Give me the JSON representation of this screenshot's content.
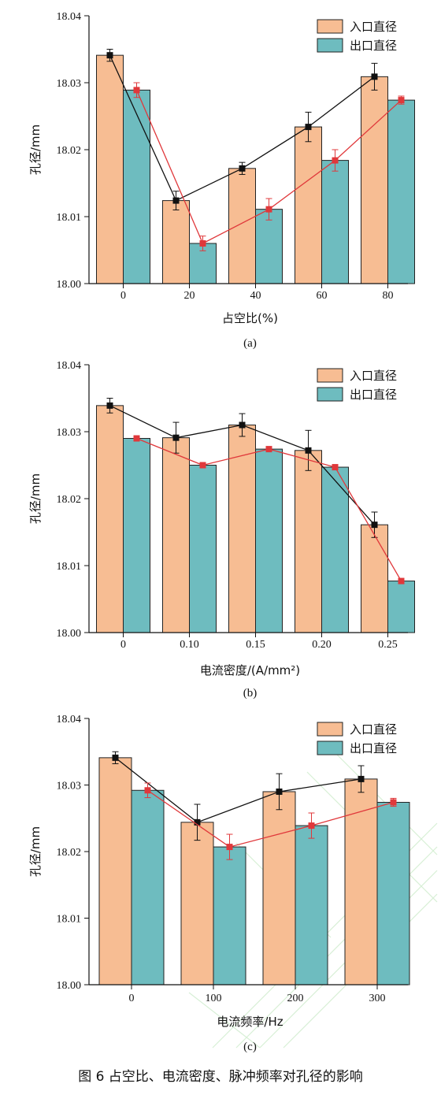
{
  "figure_caption": "图 6    占空比、电流密度、脉冲频率对孔径的影响",
  "colors": {
    "inlet_bar": "#f7bd93",
    "outlet_bar": "#6ebcbf",
    "inlet_line": "#111111",
    "outlet_line": "#e0383b",
    "watermark": "#d7efd6"
  },
  "chart_data": [
    {
      "type": "bar",
      "panel_label": "(a)",
      "xlabel": "占空比(%)",
      "ylabel": "孔径/mm",
      "ylim": [
        18.0,
        18.04
      ],
      "yticks": [
        "18.00",
        "18.01",
        "18.02",
        "18.03",
        "18.04"
      ],
      "categories": [
        "0",
        "20",
        "40",
        "60",
        "80"
      ],
      "legend_position": "top-right",
      "series": [
        {
          "name": "入口直径",
          "values": [
            18.0341,
            18.0124,
            18.0172,
            18.0234,
            18.0309
          ],
          "errors": [
            0.0009,
            0.0014,
            0.0009,
            0.0022,
            0.002
          ]
        },
        {
          "name": "出口直径",
          "values": [
            18.0289,
            18.006,
            18.0111,
            18.0184,
            18.0274
          ],
          "errors": [
            0.0011,
            0.0011,
            0.0016,
            0.0016,
            0.0006
          ]
        }
      ]
    },
    {
      "type": "bar",
      "panel_label": "(b)",
      "xlabel": "电流密度/(A/mm²)",
      "ylabel": "孔径/mm",
      "ylim": [
        18.0,
        18.04
      ],
      "yticks": [
        "18.00",
        "18.01",
        "18.02",
        "18.03",
        "18.04"
      ],
      "categories": [
        "0",
        "0.10",
        "0.15",
        "0.20",
        "0.25"
      ],
      "legend_position": "top-right",
      "series": [
        {
          "name": "入口直径",
          "values": [
            18.0339,
            18.0291,
            18.031,
            18.0272,
            18.0161
          ],
          "errors": [
            0.0011,
            0.0023,
            0.0017,
            0.003,
            0.0019
          ]
        },
        {
          "name": "出口直径",
          "values": [
            18.029,
            18.025,
            18.0274,
            18.0247,
            18.0077
          ],
          "errors": [
            0.0003,
            0.0003,
            0.0003,
            0.0003,
            0.0003
          ]
        }
      ]
    },
    {
      "type": "bar",
      "panel_label": "(c)",
      "xlabel": "电流频率/Hz",
      "ylabel": "孔径/mm",
      "ylim": [
        18.0,
        18.04
      ],
      "yticks": [
        "18.00",
        "18.01",
        "18.02",
        "18.03",
        "18.04"
      ],
      "categories": [
        "0",
        "100",
        "200",
        "300"
      ],
      "legend_position": "top-right",
      "series": [
        {
          "name": "入口直径",
          "values": [
            18.0341,
            18.0244,
            18.029,
            18.0309
          ],
          "errors": [
            0.0009,
            0.0027,
            0.0027,
            0.002
          ]
        },
        {
          "name": "出口直径",
          "values": [
            18.0292,
            18.0207,
            18.0239,
            18.0274
          ],
          "errors": [
            0.0011,
            0.0019,
            0.0019,
            0.0006
          ]
        }
      ]
    }
  ]
}
